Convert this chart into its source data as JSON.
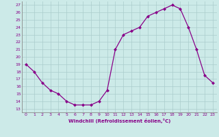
{
  "hours": [
    0,
    1,
    2,
    3,
    4,
    5,
    6,
    7,
    8,
    9,
    10,
    11,
    12,
    13,
    14,
    15,
    16,
    17,
    18,
    19,
    20,
    21,
    22,
    23
  ],
  "values": [
    19,
    18,
    16.5,
    15.5,
    15,
    14,
    13.5,
    13.5,
    13.5,
    14,
    15.5,
    21,
    23,
    23.5,
    24,
    25.5,
    26,
    26.5,
    27,
    26.5,
    24,
    21,
    17.5,
    16.5
  ],
  "line_color": "#880088",
  "marker_color": "#880088",
  "bg_color": "#cceae8",
  "grid_color": "#aacccc",
  "xlabel": "Windchill (Refroidissement éolien,°C)",
  "ylabel_ticks": [
    13,
    14,
    15,
    16,
    17,
    18,
    19,
    20,
    21,
    22,
    23,
    24,
    25,
    26,
    27
  ],
  "xlim": [
    -0.5,
    23.5
  ],
  "ylim": [
    12.5,
    27.5
  ],
  "tick_color": "#880088",
  "label_color": "#880088"
}
